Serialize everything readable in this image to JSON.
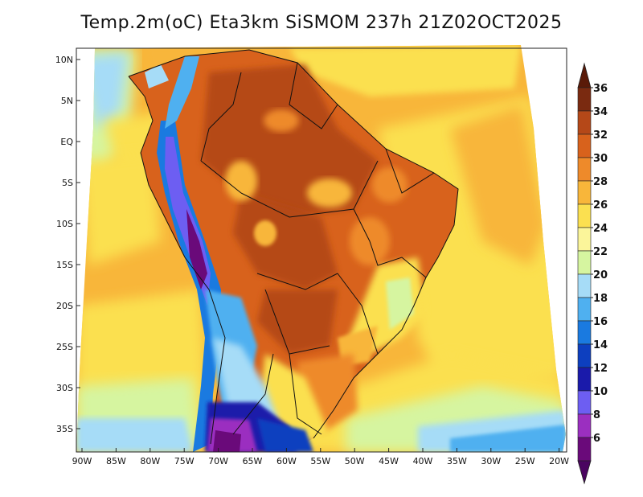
{
  "title": "Temp.2m(oC) Eta3km SiSMOM 237h 21Z02OCT2025",
  "y_axis": [
    "10N",
    "5N",
    "EQ",
    "5S",
    "10S",
    "15S",
    "20S",
    "25S",
    "30S",
    "35S"
  ],
  "x_axis": [
    "90W",
    "85W",
    "80W",
    "75W",
    "70W",
    "65W",
    "60W",
    "55W",
    "50W",
    "45W",
    "40W",
    "35W",
    "30W",
    "25W",
    "20W"
  ],
  "colorbar": {
    "levels": [
      "6",
      "8",
      "10",
      "12",
      "14",
      "16",
      "18",
      "20",
      "22",
      "24",
      "26",
      "28",
      "30",
      "32",
      "34",
      "36"
    ],
    "colors": [
      "#6a0a7a",
      "#9b2fc0",
      "#6d5ef2",
      "#1a1aaa",
      "#0d3fbf",
      "#1a7ae0",
      "#4fb0f0",
      "#a6dcf7",
      "#d6f5a0",
      "#fbf59a",
      "#fbe050",
      "#f8b63a",
      "#ee8a2a",
      "#d8621c",
      "#b54818",
      "#7a2a10"
    ],
    "over_color": "#5a1a08",
    "under_color": "#4a0460"
  }
}
